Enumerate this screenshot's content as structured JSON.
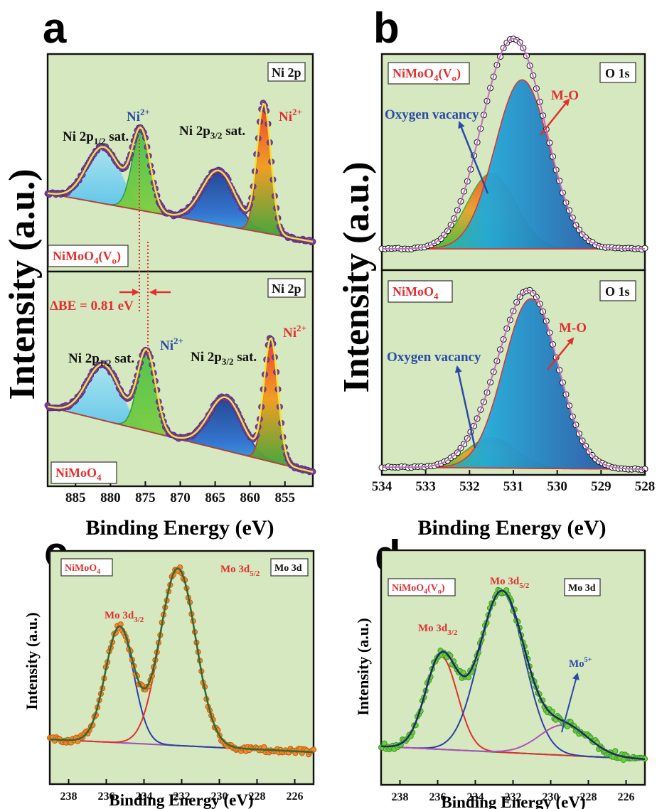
{
  "panels": {
    "a": {
      "letter": "a",
      "ylabel": "Intensity (a.u.)",
      "xlabel": "Binding Energy (eV)",
      "top_label": "NiMoO",
      "top_label_sub": "4",
      "top_label_tail": "(V",
      "top_label_tail_sub": "o",
      "top_label_end": ")",
      "bottom_label": "NiMoO",
      "bottom_label_sub": "4",
      "region": "Ni 2p",
      "ann_sat_half": "Ni 2p",
      "ann_sat_half_sub": "1/2",
      "ann_sat_word": " sat.",
      "ann_sat_three": "Ni 2p",
      "ann_sat_three_sub": "3/2",
      "ann_ni": "Ni",
      "ann_ni_sup": "2+",
      "delta_be": "ΔBE = 0.81 eV"
    },
    "b": {
      "letter": "b",
      "ylabel": "Intensity (a.u.)",
      "xlabel": "Binding Energy (eV)",
      "top_label": "NiMoO",
      "top_label_sub": "4",
      "top_label_tail": "(V",
      "top_label_tail_sub": "o",
      "top_label_end": ")",
      "bottom_label": "NiMoO",
      "bottom_label_sub": "4",
      "region": "O 1s",
      "ann_mo": "M-O",
      "ann_vac": "Oxygen vacancy"
    },
    "c": {
      "letter": "c",
      "ylabel": "Intensity (a.u.)",
      "xlabel": "Binding Energy (eV)",
      "label": "NiMoO",
      "label_sub": "4",
      "region": "Mo 3d",
      "ann_52": "Mo 3d",
      "ann_52_sub": "5/2",
      "ann_32": "Mo 3d",
      "ann_32_sub": "3/2"
    },
    "d": {
      "letter": "d",
      "ylabel": "Intensity (a.u.)",
      "xlabel": "Binding Energy (eV)",
      "label": "NiMoO",
      "label_sub": "4",
      "label_tail": "(V",
      "label_tail_sub": "o",
      "label_end": ")",
      "region": "Mo 3d",
      "ann_52": "Mo 3d",
      "ann_52_sub": "5/2",
      "ann_32": "Mo 3d",
      "ann_32_sub": "3/2",
      "ann_mo5": "Mo",
      "ann_mo5_sup": "5+"
    }
  },
  "chart_data": [
    {
      "panel": "a",
      "type": "line",
      "title": "",
      "xlabel": "Binding Energy (eV)",
      "ylabel": "Intensity (a.u.)",
      "xlim": [
        889,
        851
      ],
      "x_ticks": [
        885,
        880,
        875,
        870,
        865,
        860,
        855
      ],
      "subplots": [
        {
          "sample": "NiMoO4(Vo)",
          "region": "Ni 2p",
          "peaks": [
            {
              "name": "Ni 2p1/2 sat.",
              "center": 881.0,
              "height": 0.42
            },
            {
              "name": "Ni2+ (2p1/2)",
              "center": 875.6,
              "height": 0.58
            },
            {
              "name": "Ni 2p3/2 sat.",
              "center": 864.5,
              "height": 0.4
            },
            {
              "name": "Ni2+ (2p3/2)",
              "center": 858.0,
              "height": 0.95
            }
          ]
        },
        {
          "sample": "NiMoO4",
          "region": "Ni 2p",
          "peaks": [
            {
              "name": "Ni 2p1/2 sat.",
              "center": 881.0,
              "height": 0.42
            },
            {
              "name": "Ni2+ (2p1/2)",
              "center": 874.8,
              "height": 0.6
            },
            {
              "name": "Ni 2p3/2 sat.",
              "center": 863.5,
              "height": 0.4
            },
            {
              "name": "Ni2+ (2p3/2)",
              "center": 857.0,
              "height": 0.92
            }
          ]
        }
      ],
      "delta_be_eV": 0.81
    },
    {
      "panel": "b",
      "type": "line",
      "title": "",
      "xlabel": "Binding Energy (eV)",
      "ylabel": "Intensity (a.u.)",
      "xlim": [
        534,
        528
      ],
      "x_ticks": [
        534,
        533,
        532,
        531,
        530,
        529,
        528
      ],
      "subplots": [
        {
          "sample": "NiMoO4(Vo)",
          "region": "O 1s",
          "peaks": [
            {
              "name": "Oxygen vacancy",
              "center": 531.5,
              "height": 0.38
            },
            {
              "name": "M-O",
              "center": 530.8,
              "height": 0.85
            }
          ]
        },
        {
          "sample": "NiMoO4",
          "region": "O 1s",
          "peaks": [
            {
              "name": "Oxygen vacancy",
              "center": 531.5,
              "height": 0.16
            },
            {
              "name": "M-O",
              "center": 530.6,
              "height": 0.9
            }
          ]
        }
      ]
    },
    {
      "panel": "c",
      "type": "line",
      "title": "",
      "xlabel": "Binding Energy (eV)",
      "ylabel": "Intensity (a.u.)",
      "xlim": [
        239,
        225
      ],
      "x_ticks": [
        238,
        236,
        234,
        232,
        230,
        228,
        226
      ],
      "sample": "NiMoO4",
      "region": "Mo 3d",
      "peaks": [
        {
          "name": "Mo 3d3/2",
          "center": 235.3,
          "height": 0.62
        },
        {
          "name": "Mo 3d5/2",
          "center": 232.2,
          "height": 0.95
        }
      ]
    },
    {
      "panel": "d",
      "type": "line",
      "title": "",
      "xlabel": "Binding Energy (eV)",
      "ylabel": "Intensity (a.u.)",
      "xlim": [
        239,
        225
      ],
      "x_ticks": [
        238,
        236,
        234,
        232,
        230,
        228,
        226
      ],
      "sample": "NiMoO4(Vo)",
      "region": "Mo 3d",
      "peaks": [
        {
          "name": "Mo 3d3/2",
          "center": 235.8,
          "height": 0.52
        },
        {
          "name": "Mo 3d5/2",
          "center": 232.6,
          "height": 0.9
        },
        {
          "name": "Mo5+",
          "center": 229.3,
          "height": 0.17
        }
      ]
    }
  ]
}
